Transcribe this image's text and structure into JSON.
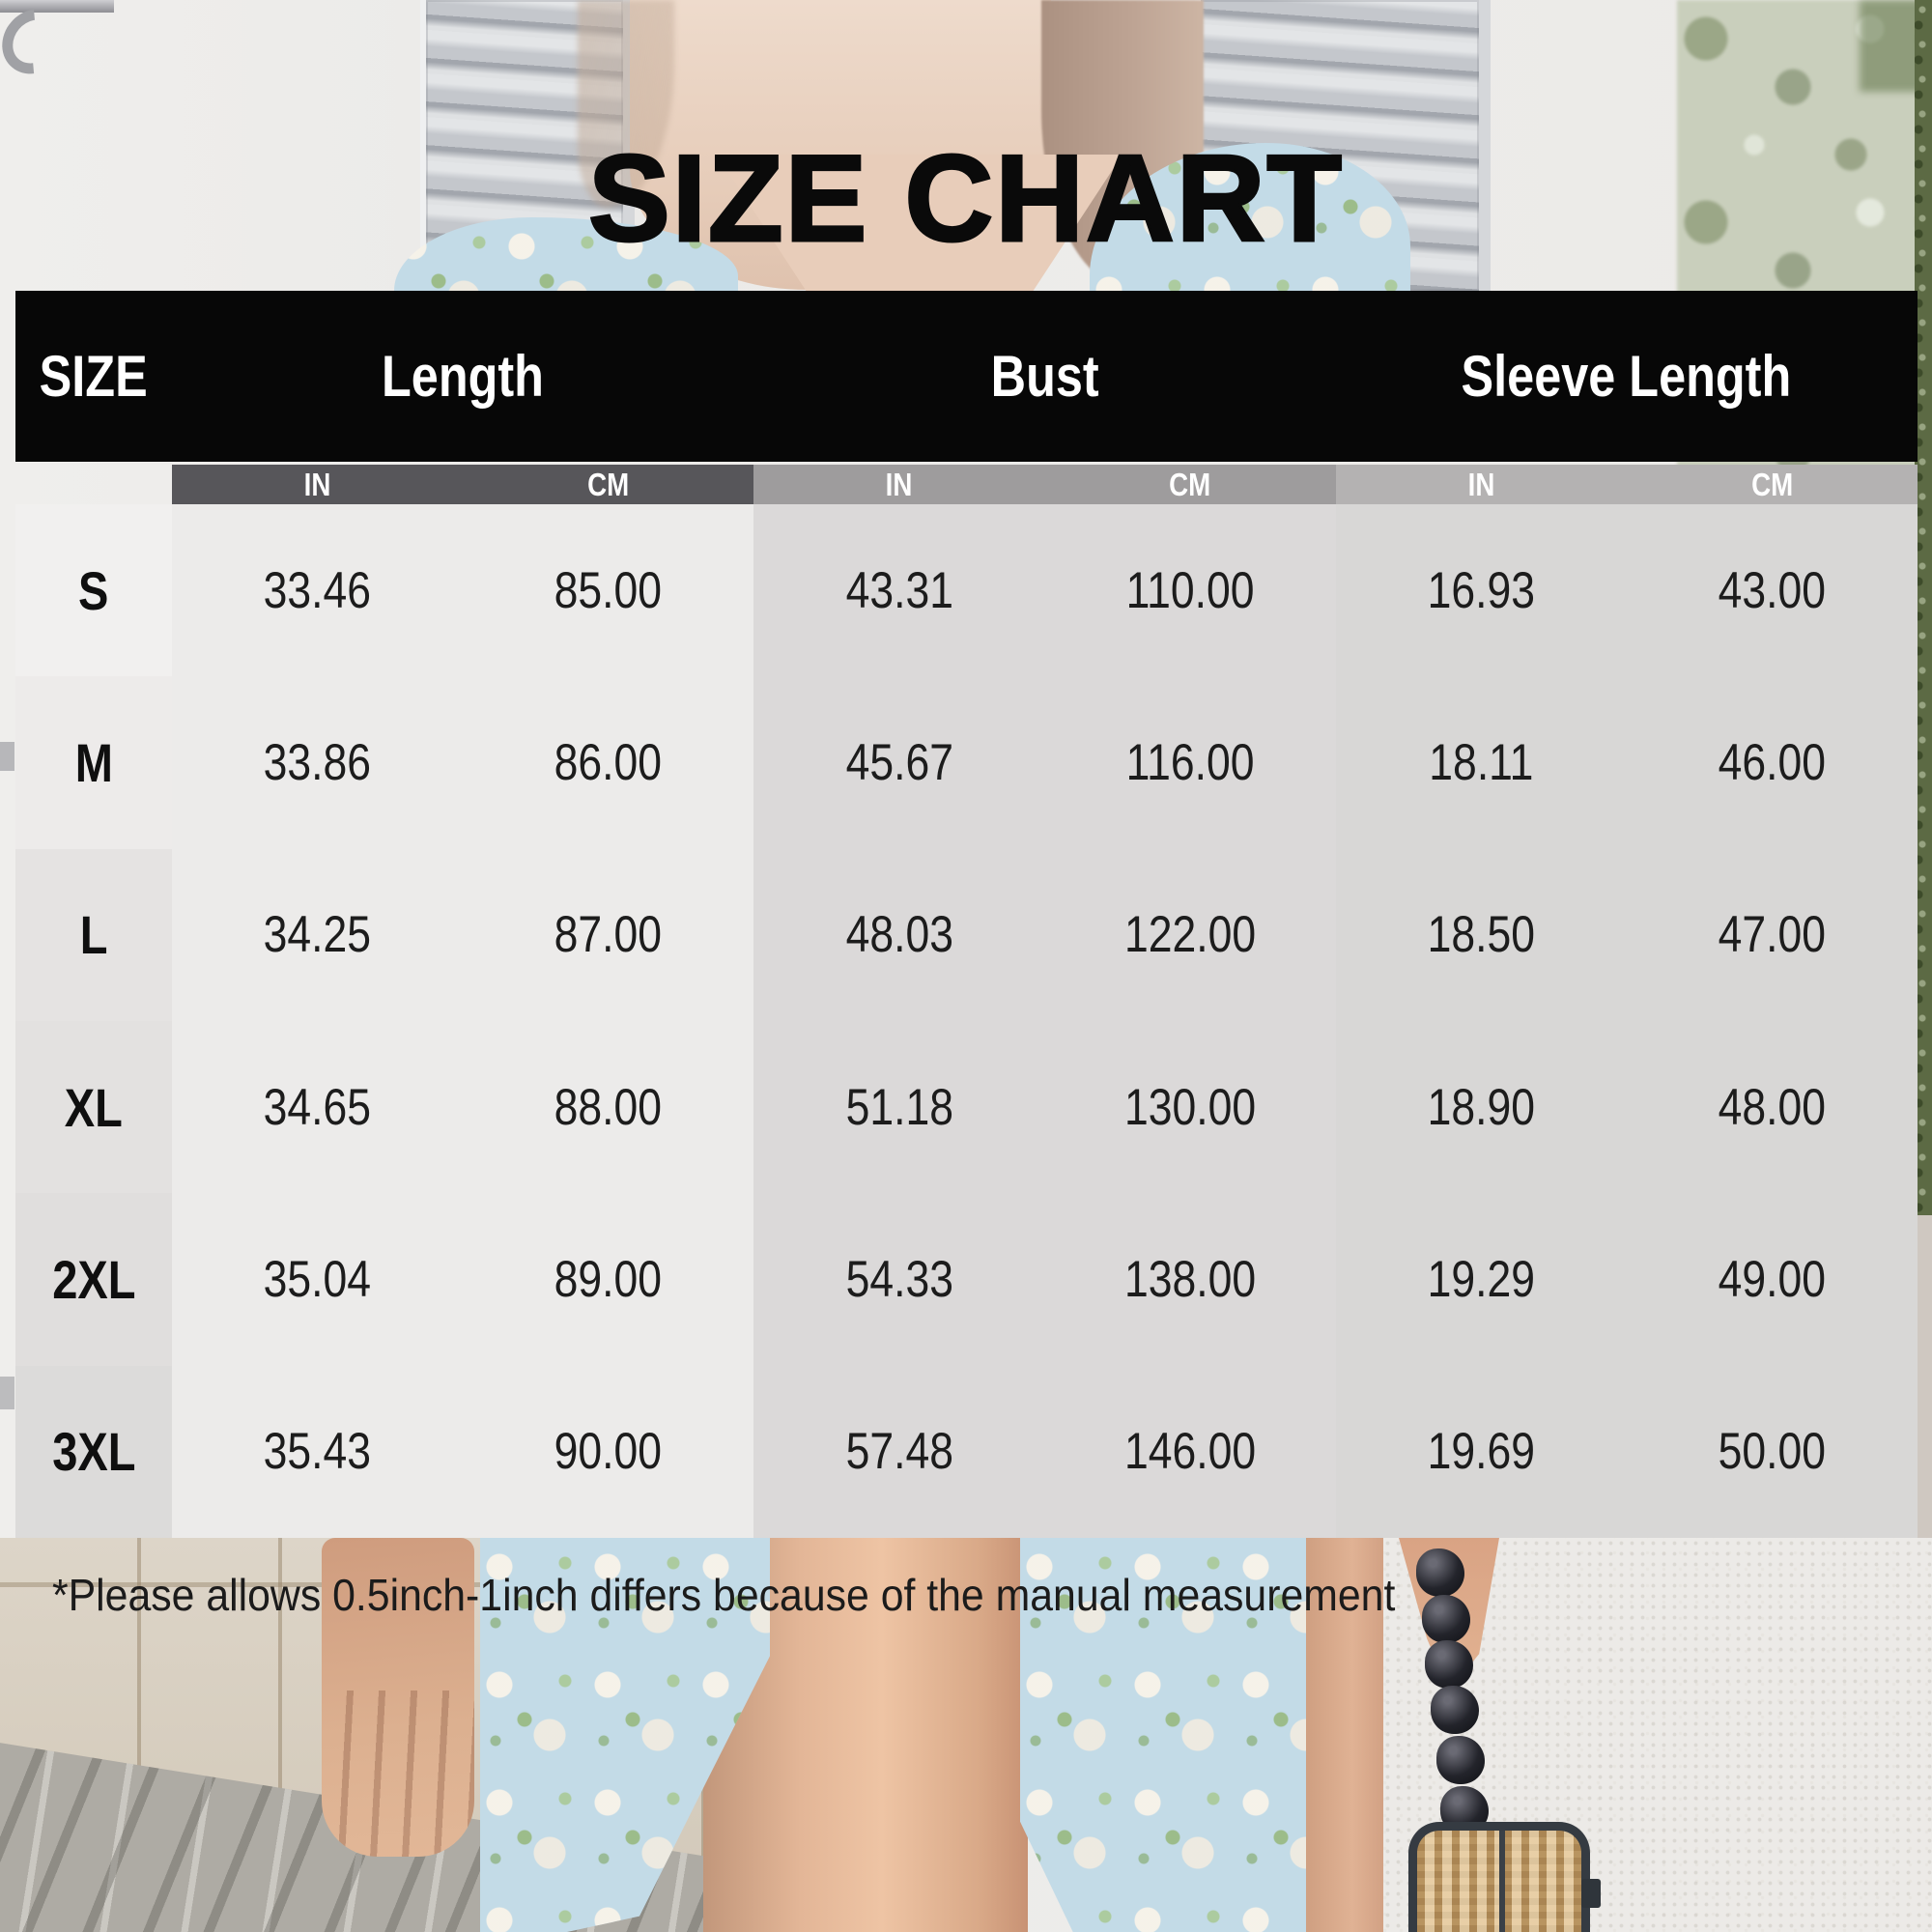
{
  "title": "SIZE CHART",
  "table": {
    "size_header": "SIZE",
    "groups": [
      {
        "label": "Length"
      },
      {
        "label": "Bust"
      },
      {
        "label": "Sleeve Length"
      }
    ],
    "unit_in": "IN",
    "unit_cm": "CM",
    "rows": [
      {
        "size": "S",
        "length_in": "33.46",
        "length_cm": "85.00",
        "bust_in": "43.31",
        "bust_cm": "110.00",
        "sleeve_in": "16.93",
        "sleeve_cm": "43.00"
      },
      {
        "size": "M",
        "length_in": "33.86",
        "length_cm": "86.00",
        "bust_in": "45.67",
        "bust_cm": "116.00",
        "sleeve_in": "18.11",
        "sleeve_cm": "46.00"
      },
      {
        "size": "L",
        "length_in": "34.25",
        "length_cm": "87.00",
        "bust_in": "48.03",
        "bust_cm": "122.00",
        "sleeve_in": "18.50",
        "sleeve_cm": "47.00"
      },
      {
        "size": "XL",
        "length_in": "34.65",
        "length_cm": "88.00",
        "bust_in": "51.18",
        "bust_cm": "130.00",
        "sleeve_in": "18.90",
        "sleeve_cm": "48.00"
      },
      {
        "size": "2XL",
        "length_in": "35.04",
        "length_cm": "89.00",
        "bust_in": "54.33",
        "bust_cm": "138.00",
        "sleeve_in": "19.29",
        "sleeve_cm": "49.00"
      },
      {
        "size": "3XL",
        "length_in": "35.43",
        "length_cm": "90.00",
        "bust_in": "57.48",
        "bust_cm": "146.00",
        "sleeve_in": "19.69",
        "sleeve_cm": "50.00"
      }
    ]
  },
  "footer_note": "*Please allows 0.5inch-1inch differs because of the manual measurement",
  "colors": {
    "header_bar": "#070707",
    "header_text": "#ffffff",
    "subheader_length": "#57565a",
    "subheader_bust": "#9e9c9d",
    "subheader_sleeve": "#b4b2b2",
    "column_length_bg": "#ecebea",
    "column_bust_bg": "#dbd9d9",
    "column_sleeve_bg": "#d8d7d6",
    "body_text": "#1c1c1c"
  },
  "chart_data": {
    "type": "table",
    "title": "SIZE CHART",
    "columns": [
      "Size",
      "Length (IN)",
      "Length (CM)",
      "Bust (IN)",
      "Bust (CM)",
      "Sleeve Length (IN)",
      "Sleeve Length (CM)"
    ],
    "rows": [
      [
        "S",
        33.46,
        85.0,
        43.31,
        110.0,
        16.93,
        43.0
      ],
      [
        "M",
        33.86,
        86.0,
        45.67,
        116.0,
        18.11,
        46.0
      ],
      [
        "L",
        34.25,
        87.0,
        48.03,
        122.0,
        18.5,
        47.0
      ],
      [
        "XL",
        34.65,
        88.0,
        51.18,
        130.0,
        18.9,
        48.0
      ],
      [
        "2XL",
        35.04,
        89.0,
        54.33,
        138.0,
        19.29,
        49.0
      ],
      [
        "3XL",
        35.43,
        90.0,
        57.48,
        146.0,
        19.69,
        50.0
      ]
    ],
    "note": "*Please allows 0.5inch-1inch differs because of the manual measurement",
    "layout_hints": {
      "units_row": [
        "IN",
        "CM"
      ],
      "header_style": "black-bar",
      "grid": "off"
    }
  }
}
